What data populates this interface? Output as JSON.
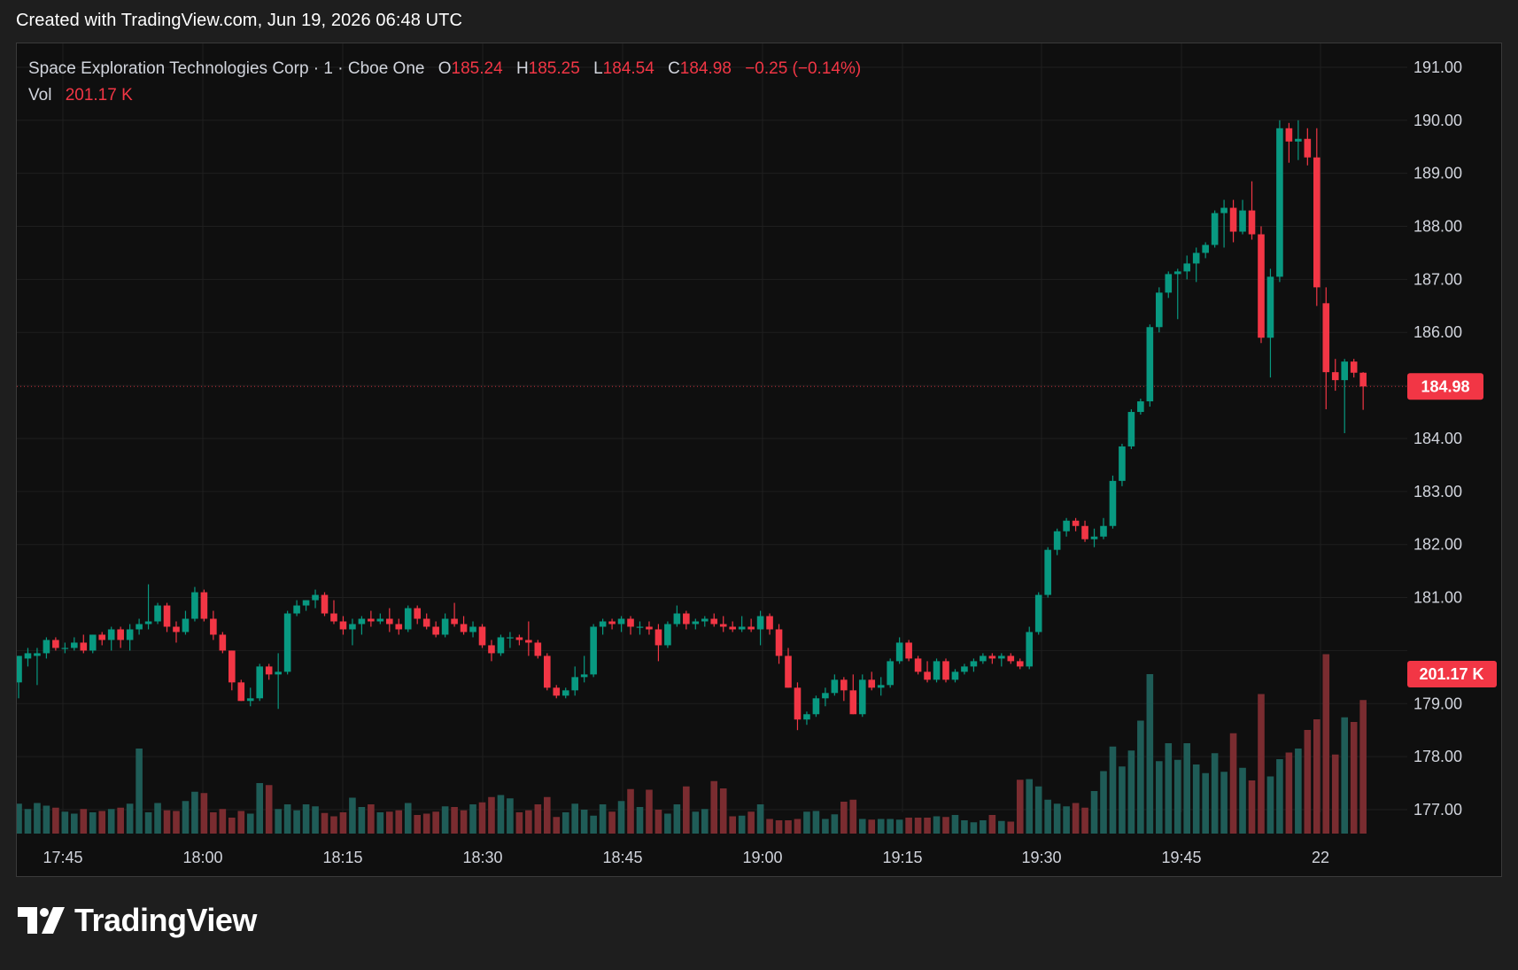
{
  "header": {
    "created_text": "Created with TradingView.com, Jun 19, 2026 06:48 UTC"
  },
  "legend": {
    "symbol": "Space Exploration Technologies Corp · 1 · Cboe One",
    "o_label": "O",
    "o_value": "185.24",
    "h_label": "H",
    "h_value": "185.25",
    "l_label": "L",
    "l_value": "184.54",
    "c_label": "C",
    "c_value": "184.98",
    "change": "−0.25 (−0.14%)",
    "vol_label": "Vol",
    "vol_value": "201.17 K"
  },
  "price_badge": "184.98",
  "volume_badge": "201.17 K",
  "brand": {
    "name": "TradingView"
  },
  "colors": {
    "up": "#089981",
    "down": "#f23645",
    "vol_up": "#1f5c57",
    "vol_down": "#7a2c30",
    "background": "#0f0f0f"
  },
  "chart_data": {
    "type": "candlestick",
    "symbol": "Space Exploration Technologies Corp",
    "interval": "1",
    "exchange": "Cboe One",
    "y_axis": {
      "ticks": [
        "191.00",
        "190.00",
        "189.00",
        "188.00",
        "187.00",
        "186.00",
        "185.00",
        "184.00",
        "183.00",
        "182.00",
        "181.00",
        "180.00",
        "179.00",
        "178.00",
        "177.00"
      ],
      "labels_shown": [
        "191.00",
        "190.00",
        "189.00",
        "188.00",
        "187.00",
        "186.00",
        "184.00",
        "183.00",
        "182.00",
        "181.00",
        "179.00",
        "178.00",
        "177.00"
      ],
      "range": [
        176.95,
        191.45
      ]
    },
    "x_axis": {
      "labels": [
        "17:45",
        "18:00",
        "18:15",
        "18:30",
        "18:45",
        "19:00",
        "19:15",
        "19:30",
        "19:45",
        "22"
      ]
    },
    "last_price": 184.98,
    "candles": [
      {
        "o": 179.4,
        "h": 179.9,
        "l": 179.1,
        "c": 179.9
      },
      {
        "o": 179.85,
        "h": 180.05,
        "l": 179.7,
        "c": 179.95
      },
      {
        "o": 179.9,
        "h": 180.05,
        "l": 179.35,
        "c": 179.95
      },
      {
        "o": 179.95,
        "h": 180.25,
        "l": 179.85,
        "c": 180.2
      },
      {
        "o": 180.2,
        "h": 180.25,
        "l": 180.0,
        "c": 180.05
      },
      {
        "o": 180.05,
        "h": 180.15,
        "l": 179.95,
        "c": 180.05
      },
      {
        "o": 180.05,
        "h": 180.25,
        "l": 180.0,
        "c": 180.15
      },
      {
        "o": 180.15,
        "h": 180.3,
        "l": 179.95,
        "c": 180.0
      },
      {
        "o": 180.0,
        "h": 180.3,
        "l": 179.95,
        "c": 180.3
      },
      {
        "o": 180.3,
        "h": 180.35,
        "l": 180.1,
        "c": 180.2
      },
      {
        "o": 180.2,
        "h": 180.45,
        "l": 180.0,
        "c": 180.4
      },
      {
        "o": 180.4,
        "h": 180.45,
        "l": 180.05,
        "c": 180.2
      },
      {
        "o": 180.2,
        "h": 180.5,
        "l": 180.0,
        "c": 180.4
      },
      {
        "o": 180.4,
        "h": 180.6,
        "l": 180.3,
        "c": 180.5
      },
      {
        "o": 180.5,
        "h": 181.25,
        "l": 180.4,
        "c": 180.55
      },
      {
        "o": 180.55,
        "h": 180.9,
        "l": 180.5,
        "c": 180.85
      },
      {
        "o": 180.85,
        "h": 180.9,
        "l": 180.35,
        "c": 180.45
      },
      {
        "o": 180.45,
        "h": 180.55,
        "l": 180.15,
        "c": 180.35
      },
      {
        "o": 180.35,
        "h": 180.75,
        "l": 180.3,
        "c": 180.6
      },
      {
        "o": 180.6,
        "h": 181.2,
        "l": 180.55,
        "c": 181.1
      },
      {
        "o": 181.1,
        "h": 181.15,
        "l": 180.55,
        "c": 180.6
      },
      {
        "o": 180.6,
        "h": 180.75,
        "l": 180.2,
        "c": 180.3
      },
      {
        "o": 180.3,
        "h": 180.35,
        "l": 179.95,
        "c": 180.0
      },
      {
        "o": 180.0,
        "h": 180.0,
        "l": 179.25,
        "c": 179.4
      },
      {
        "o": 179.4,
        "h": 179.45,
        "l": 179.05,
        "c": 179.05
      },
      {
        "o": 179.05,
        "h": 179.3,
        "l": 178.95,
        "c": 179.1
      },
      {
        "o": 179.1,
        "h": 179.75,
        "l": 179.05,
        "c": 179.7
      },
      {
        "o": 179.7,
        "h": 179.75,
        "l": 179.45,
        "c": 179.55
      },
      {
        "o": 179.55,
        "h": 179.95,
        "l": 178.9,
        "c": 179.6
      },
      {
        "o": 179.6,
        "h": 180.75,
        "l": 179.55,
        "c": 180.7
      },
      {
        "o": 180.7,
        "h": 180.95,
        "l": 180.65,
        "c": 180.85
      },
      {
        "o": 180.85,
        "h": 180.95,
        "l": 180.75,
        "c": 180.95
      },
      {
        "o": 180.95,
        "h": 181.15,
        "l": 180.8,
        "c": 181.05
      },
      {
        "o": 181.05,
        "h": 181.1,
        "l": 180.65,
        "c": 180.7
      },
      {
        "o": 180.7,
        "h": 180.95,
        "l": 180.5,
        "c": 180.55
      },
      {
        "o": 180.55,
        "h": 180.65,
        "l": 180.3,
        "c": 180.4
      },
      {
        "o": 180.4,
        "h": 180.6,
        "l": 180.1,
        "c": 180.5
      },
      {
        "o": 180.5,
        "h": 180.65,
        "l": 180.3,
        "c": 180.6
      },
      {
        "o": 180.6,
        "h": 180.75,
        "l": 180.45,
        "c": 180.55
      },
      {
        "o": 180.55,
        "h": 180.7,
        "l": 180.5,
        "c": 180.6
      },
      {
        "o": 180.6,
        "h": 180.8,
        "l": 180.35,
        "c": 180.5
      },
      {
        "o": 180.5,
        "h": 180.6,
        "l": 180.3,
        "c": 180.4
      },
      {
        "o": 180.4,
        "h": 180.85,
        "l": 180.35,
        "c": 180.8
      },
      {
        "o": 180.8,
        "h": 180.85,
        "l": 180.5,
        "c": 180.6
      },
      {
        "o": 180.6,
        "h": 180.7,
        "l": 180.4,
        "c": 180.45
      },
      {
        "o": 180.45,
        "h": 180.55,
        "l": 180.25,
        "c": 180.3
      },
      {
        "o": 180.3,
        "h": 180.7,
        "l": 180.25,
        "c": 180.6
      },
      {
        "o": 180.6,
        "h": 180.9,
        "l": 180.45,
        "c": 180.5
      },
      {
        "o": 180.5,
        "h": 180.65,
        "l": 180.3,
        "c": 180.35
      },
      {
        "o": 180.35,
        "h": 180.55,
        "l": 180.25,
        "c": 180.45
      },
      {
        "o": 180.45,
        "h": 180.5,
        "l": 180.05,
        "c": 180.1
      },
      {
        "o": 180.1,
        "h": 180.2,
        "l": 179.8,
        "c": 179.95
      },
      {
        "o": 179.95,
        "h": 180.3,
        "l": 179.9,
        "c": 180.25
      },
      {
        "o": 180.25,
        "h": 180.35,
        "l": 180.05,
        "c": 180.25
      },
      {
        "o": 180.25,
        "h": 180.3,
        "l": 180.1,
        "c": 180.2
      },
      {
        "o": 180.2,
        "h": 180.55,
        "l": 179.9,
        "c": 180.15
      },
      {
        "o": 180.15,
        "h": 180.2,
        "l": 179.85,
        "c": 179.9
      },
      {
        "o": 179.9,
        "h": 179.95,
        "l": 179.25,
        "c": 179.3
      },
      {
        "o": 179.3,
        "h": 179.35,
        "l": 179.1,
        "c": 179.15
      },
      {
        "o": 179.15,
        "h": 179.3,
        "l": 179.1,
        "c": 179.25
      },
      {
        "o": 179.25,
        "h": 179.7,
        "l": 179.15,
        "c": 179.5
      },
      {
        "o": 179.5,
        "h": 179.9,
        "l": 179.4,
        "c": 179.55
      },
      {
        "o": 179.55,
        "h": 180.5,
        "l": 179.5,
        "c": 180.45
      },
      {
        "o": 180.45,
        "h": 180.6,
        "l": 180.3,
        "c": 180.55
      },
      {
        "o": 180.55,
        "h": 180.6,
        "l": 180.4,
        "c": 180.5
      },
      {
        "o": 180.5,
        "h": 180.65,
        "l": 180.35,
        "c": 180.6
      },
      {
        "o": 180.6,
        "h": 180.65,
        "l": 180.3,
        "c": 180.45
      },
      {
        "o": 180.45,
        "h": 180.55,
        "l": 180.3,
        "c": 180.45
      },
      {
        "o": 180.45,
        "h": 180.55,
        "l": 180.3,
        "c": 180.4
      },
      {
        "o": 180.4,
        "h": 180.5,
        "l": 179.8,
        "c": 180.1
      },
      {
        "o": 180.1,
        "h": 180.55,
        "l": 180.05,
        "c": 180.5
      },
      {
        "o": 180.5,
        "h": 180.85,
        "l": 180.45,
        "c": 180.7
      },
      {
        "o": 180.7,
        "h": 180.75,
        "l": 180.4,
        "c": 180.5
      },
      {
        "o": 180.5,
        "h": 180.6,
        "l": 180.4,
        "c": 180.55
      },
      {
        "o": 180.55,
        "h": 180.65,
        "l": 180.45,
        "c": 180.6
      },
      {
        "o": 180.6,
        "h": 180.7,
        "l": 180.45,
        "c": 180.5
      },
      {
        "o": 180.5,
        "h": 180.65,
        "l": 180.35,
        "c": 180.45
      },
      {
        "o": 180.45,
        "h": 180.55,
        "l": 180.35,
        "c": 180.4
      },
      {
        "o": 180.4,
        "h": 180.65,
        "l": 180.35,
        "c": 180.45
      },
      {
        "o": 180.45,
        "h": 180.6,
        "l": 180.35,
        "c": 180.4
      },
      {
        "o": 180.4,
        "h": 180.75,
        "l": 180.1,
        "c": 180.65
      },
      {
        "o": 180.65,
        "h": 180.7,
        "l": 180.3,
        "c": 180.4
      },
      {
        "o": 180.4,
        "h": 180.5,
        "l": 179.75,
        "c": 179.9
      },
      {
        "o": 179.9,
        "h": 180.05,
        "l": 179.3,
        "c": 179.3
      },
      {
        "o": 179.3,
        "h": 179.4,
        "l": 178.5,
        "c": 178.7
      },
      {
        "o": 178.7,
        "h": 178.85,
        "l": 178.6,
        "c": 178.8
      },
      {
        "o": 178.8,
        "h": 179.15,
        "l": 178.75,
        "c": 179.1
      },
      {
        "o": 179.1,
        "h": 179.3,
        "l": 178.95,
        "c": 179.2
      },
      {
        "o": 179.2,
        "h": 179.55,
        "l": 179.15,
        "c": 179.45
      },
      {
        "o": 179.45,
        "h": 179.5,
        "l": 179.05,
        "c": 179.25
      },
      {
        "o": 179.25,
        "h": 179.55,
        "l": 178.8,
        "c": 178.8
      },
      {
        "o": 178.8,
        "h": 179.55,
        "l": 178.75,
        "c": 179.45
      },
      {
        "o": 179.45,
        "h": 179.6,
        "l": 179.25,
        "c": 179.3
      },
      {
        "o": 179.3,
        "h": 179.5,
        "l": 179.15,
        "c": 179.35
      },
      {
        "o": 179.35,
        "h": 179.85,
        "l": 179.3,
        "c": 179.8
      },
      {
        "o": 179.8,
        "h": 180.25,
        "l": 179.75,
        "c": 180.15
      },
      {
        "o": 180.15,
        "h": 180.2,
        "l": 179.8,
        "c": 179.85
      },
      {
        "o": 179.85,
        "h": 179.9,
        "l": 179.55,
        "c": 179.6
      },
      {
        "o": 179.6,
        "h": 179.8,
        "l": 179.4,
        "c": 179.45
      },
      {
        "o": 179.45,
        "h": 179.85,
        "l": 179.4,
        "c": 179.8
      },
      {
        "o": 179.8,
        "h": 179.85,
        "l": 179.4,
        "c": 179.45
      },
      {
        "o": 179.45,
        "h": 179.65,
        "l": 179.4,
        "c": 179.6
      },
      {
        "o": 179.6,
        "h": 179.75,
        "l": 179.55,
        "c": 179.7
      },
      {
        "o": 179.7,
        "h": 179.85,
        "l": 179.6,
        "c": 179.8
      },
      {
        "o": 179.8,
        "h": 179.95,
        "l": 179.75,
        "c": 179.9
      },
      {
        "o": 179.9,
        "h": 179.95,
        "l": 179.75,
        "c": 179.85
      },
      {
        "o": 179.85,
        "h": 179.95,
        "l": 179.7,
        "c": 179.9
      },
      {
        "o": 179.9,
        "h": 179.95,
        "l": 179.75,
        "c": 179.8
      },
      {
        "o": 179.8,
        "h": 179.85,
        "l": 179.65,
        "c": 179.7
      },
      {
        "o": 179.7,
        "h": 180.45,
        "l": 179.65,
        "c": 180.35
      },
      {
        "o": 180.35,
        "h": 181.1,
        "l": 180.3,
        "c": 181.05
      },
      {
        "o": 181.05,
        "h": 181.95,
        "l": 181.0,
        "c": 181.9
      },
      {
        "o": 181.9,
        "h": 182.3,
        "l": 181.8,
        "c": 182.25
      },
      {
        "o": 182.25,
        "h": 182.5,
        "l": 182.15,
        "c": 182.45
      },
      {
        "o": 182.45,
        "h": 182.5,
        "l": 182.25,
        "c": 182.35
      },
      {
        "o": 182.35,
        "h": 182.45,
        "l": 182.05,
        "c": 182.1
      },
      {
        "o": 182.1,
        "h": 182.3,
        "l": 181.95,
        "c": 182.15
      },
      {
        "o": 182.15,
        "h": 182.5,
        "l": 182.1,
        "c": 182.35
      },
      {
        "o": 182.35,
        "h": 183.3,
        "l": 182.3,
        "c": 183.2
      },
      {
        "o": 183.2,
        "h": 183.9,
        "l": 183.1,
        "c": 183.85
      },
      {
        "o": 183.85,
        "h": 184.55,
        "l": 183.8,
        "c": 184.5
      },
      {
        "o": 184.5,
        "h": 184.75,
        "l": 184.45,
        "c": 184.7
      },
      {
        "o": 184.7,
        "h": 186.15,
        "l": 184.6,
        "c": 186.1
      },
      {
        "o": 186.1,
        "h": 186.85,
        "l": 186.0,
        "c": 186.75
      },
      {
        "o": 186.75,
        "h": 187.15,
        "l": 186.65,
        "c": 187.1
      },
      {
        "o": 187.1,
        "h": 187.2,
        "l": 186.25,
        "c": 187.15
      },
      {
        "o": 187.15,
        "h": 187.45,
        "l": 187.0,
        "c": 187.3
      },
      {
        "o": 187.3,
        "h": 187.6,
        "l": 186.95,
        "c": 187.5
      },
      {
        "o": 187.5,
        "h": 187.7,
        "l": 187.4,
        "c": 187.65
      },
      {
        "o": 187.65,
        "h": 188.3,
        "l": 187.6,
        "c": 188.25
      },
      {
        "o": 188.25,
        "h": 188.5,
        "l": 187.6,
        "c": 188.35
      },
      {
        "o": 188.35,
        "h": 188.5,
        "l": 187.7,
        "c": 187.9
      },
      {
        "o": 187.9,
        "h": 188.5,
        "l": 187.85,
        "c": 188.3
      },
      {
        "o": 188.3,
        "h": 188.85,
        "l": 187.75,
        "c": 187.85
      },
      {
        "o": 187.85,
        "h": 188.0,
        "l": 185.8,
        "c": 185.9
      },
      {
        "o": 185.9,
        "h": 187.2,
        "l": 185.15,
        "c": 187.05
      },
      {
        "o": 187.05,
        "h": 190.0,
        "l": 186.95,
        "c": 189.85
      },
      {
        "o": 189.85,
        "h": 189.95,
        "l": 189.2,
        "c": 189.6
      },
      {
        "o": 189.6,
        "h": 190.0,
        "l": 189.25,
        "c": 189.65
      },
      {
        "o": 189.65,
        "h": 189.85,
        "l": 189.15,
        "c": 189.3
      },
      {
        "o": 189.3,
        "h": 189.85,
        "l": 186.5,
        "c": 186.85
      },
      {
        "o": 186.55,
        "h": 186.85,
        "l": 184.55,
        "c": 185.25
      },
      {
        "o": 185.25,
        "h": 185.5,
        "l": 184.9,
        "c": 185.1
      },
      {
        "o": 185.1,
        "h": 185.5,
        "l": 184.1,
        "c": 185.45
      },
      {
        "o": 185.45,
        "h": 185.5,
        "l": 185.15,
        "c": 185.24
      },
      {
        "o": 185.24,
        "h": 185.25,
        "l": 184.54,
        "c": 184.98
      }
    ],
    "volume": {
      "values": [
        0.45,
        0.37,
        0.46,
        0.42,
        0.39,
        0.33,
        0.3,
        0.37,
        0.32,
        0.34,
        0.37,
        0.39,
        0.45,
        1.28,
        0.32,
        0.46,
        0.35,
        0.34,
        0.49,
        0.63,
        0.61,
        0.32,
        0.37,
        0.24,
        0.34,
        0.3,
        0.76,
        0.73,
        0.37,
        0.44,
        0.35,
        0.44,
        0.41,
        0.31,
        0.26,
        0.32,
        0.54,
        0.4,
        0.44,
        0.32,
        0.33,
        0.35,
        0.46,
        0.28,
        0.3,
        0.33,
        0.41,
        0.4,
        0.35,
        0.44,
        0.47,
        0.55,
        0.58,
        0.53,
        0.32,
        0.35,
        0.44,
        0.55,
        0.25,
        0.32,
        0.45,
        0.36,
        0.27,
        0.44,
        0.33,
        0.49,
        0.67,
        0.4,
        0.66,
        0.36,
        0.3,
        0.44,
        0.71,
        0.33,
        0.37,
        0.79,
        0.68,
        0.26,
        0.27,
        0.33,
        0.44,
        0.22,
        0.2,
        0.2,
        0.22,
        0.33,
        0.34,
        0.22,
        0.29,
        0.48,
        0.51,
        0.22,
        0.21,
        0.22,
        0.22,
        0.21,
        0.24,
        0.24,
        0.24,
        0.26,
        0.25,
        0.28,
        0.2,
        0.17,
        0.2,
        0.28,
        0.19,
        0.18,
        0.81,
        0.82,
        0.71,
        0.51,
        0.45,
        0.41,
        0.46,
        0.39,
        0.64,
        0.94,
        1.31,
        1.01,
        1.25,
        1.7,
        2.4,
        1.09,
        1.36,
        1.11,
        1.36,
        1.04,
        0.91,
        1.21,
        0.93,
        1.51,
        0.99,
        0.8,
        2.1,
        0.86,
        1.12,
        1.22,
        1.28,
        1.56,
        1.72,
        2.7,
        1.19,
        1.75,
        1.68,
        2.01
      ]
    }
  }
}
